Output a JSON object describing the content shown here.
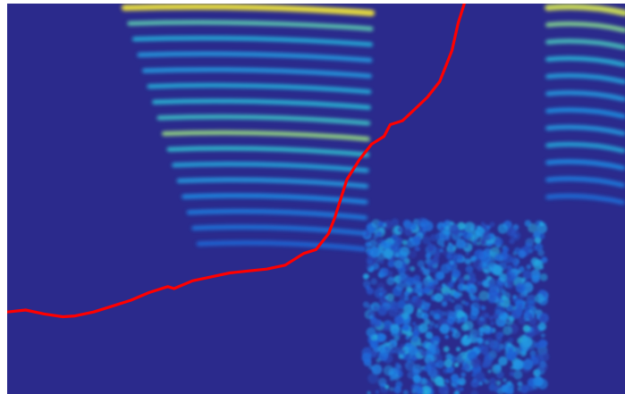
{
  "chart_data": {
    "type": "heatmap",
    "title": "",
    "xlabel": "",
    "ylabel": "",
    "grid": false,
    "legend": "none",
    "colormap": {
      "name": "jet",
      "stops": [
        "#2b2a8c",
        "#2f3aa6",
        "#1f5fd6",
        "#1f8fe8",
        "#28c0d8",
        "#8fe08a",
        "#f2e83a"
      ]
    },
    "xlim": [
      0,
      1
    ],
    "ylim": [
      0,
      1
    ],
    "harmonic_regions": [
      {
        "name": "segment-1",
        "x_start": 0.19,
        "x_end": 0.59,
        "top_y": 0.985,
        "bottom_y": 0.38,
        "count": 16,
        "intensities": [
          1.0,
          0.75,
          0.62,
          0.55,
          0.55,
          0.62,
          0.66,
          0.7,
          0.85,
          0.68,
          0.6,
          0.55,
          0.5,
          0.45,
          0.42,
          0.38
        ]
      },
      {
        "name": "segment-2",
        "x_start": 0.875,
        "x_end": 1.0,
        "top_y": 0.985,
        "bottom_y": 0.5,
        "count": 12,
        "intensities": [
          0.95,
          0.82,
          0.72,
          0.64,
          0.58,
          0.55,
          0.52,
          0.55,
          0.6,
          0.5,
          0.45,
          0.4
        ]
      }
    ],
    "noise_region": {
      "x_start": 0.58,
      "x_end": 0.87,
      "y_start": 0.0,
      "y_end": 0.44,
      "intensity": 0.6
    },
    "series": [
      {
        "type": "line",
        "color": "#ff0000",
        "x": [
          0.0,
          0.03,
          0.06,
          0.09,
          0.11,
          0.14,
          0.17,
          0.2,
          0.23,
          0.26,
          0.27,
          0.3,
          0.33,
          0.36,
          0.39,
          0.42,
          0.45,
          0.48,
          0.5,
          0.52,
          0.53,
          0.54,
          0.55,
          0.57,
          0.59,
          0.61,
          0.62,
          0.64,
          0.66,
          0.68,
          0.7,
          0.71,
          0.72,
          0.73,
          0.74
        ],
        "y": [
          0.21,
          0.215,
          0.205,
          0.198,
          0.2,
          0.21,
          0.225,
          0.24,
          0.26,
          0.275,
          0.27,
          0.29,
          0.3,
          0.31,
          0.315,
          0.32,
          0.33,
          0.36,
          0.37,
          0.41,
          0.45,
          0.5,
          0.55,
          0.6,
          0.64,
          0.66,
          0.69,
          0.7,
          0.73,
          0.76,
          0.8,
          0.84,
          0.88,
          0.95,
          1.0
        ]
      }
    ]
  }
}
